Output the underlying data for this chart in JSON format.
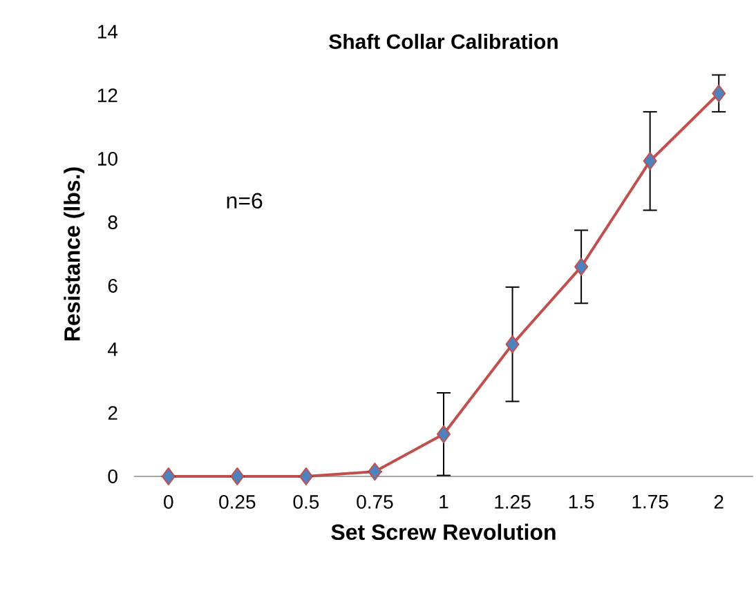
{
  "chart_data": {
    "type": "line",
    "title": "Shaft Collar Calibration",
    "xlabel": "Set Screw Revolution",
    "ylabel": "Resistance  (lbs.)",
    "categories": [
      "0",
      "0.25",
      "0.5",
      "0.75",
      "1",
      "1.25",
      "1.5",
      "1.75",
      "2"
    ],
    "values": [
      0,
      0,
      0,
      0.15,
      1.33,
      4.16,
      6.6,
      9.93,
      12.06
    ],
    "errors": [
      null,
      null,
      null,
      null,
      1.3,
      1.8,
      1.15,
      1.55,
      0.58
    ],
    "color": "#c0504d",
    "marker": "diamond",
    "ylim": [
      0,
      14
    ],
    "yticks": [
      0,
      2,
      4,
      6,
      8,
      10,
      12,
      14
    ],
    "annotations": [
      "n=6"
    ]
  }
}
